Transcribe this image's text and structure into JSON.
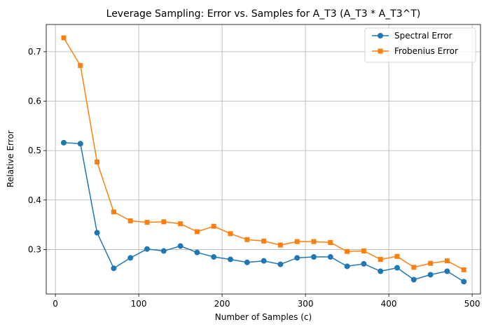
{
  "chart_data": {
    "type": "line",
    "title": "Leverage Sampling: Error vs. Samples for A_T3 (A_T3 * A_T3^T)",
    "xlabel": "Number of Samples (c)",
    "ylabel": "Relative Error",
    "xlim": [
      -11,
      510
    ],
    "ylim": [
      0.21,
      0.755
    ],
    "xticks": [
      0,
      100,
      200,
      300,
      400,
      500
    ],
    "yticks": [
      0.3,
      0.4,
      0.5,
      0.6,
      0.7
    ],
    "ytick_labels": [
      "0.3",
      "0.4",
      "0.5",
      "0.6",
      "0.7"
    ],
    "grid": true,
    "legend_position": "top-right",
    "x": [
      10,
      30,
      50,
      70,
      90,
      110,
      130,
      150,
      170,
      190,
      210,
      230,
      250,
      270,
      290,
      310,
      330,
      350,
      370,
      390,
      410,
      430,
      450,
      470,
      490
    ],
    "series": [
      {
        "name": "Spectral Error",
        "color": "#1f77b4",
        "marker": "circle",
        "values": [
          0.516,
          0.514,
          0.334,
          0.262,
          0.283,
          0.301,
          0.297,
          0.307,
          0.294,
          0.285,
          0.28,
          0.274,
          0.277,
          0.27,
          0.283,
          0.285,
          0.285,
          0.266,
          0.271,
          0.256,
          0.263,
          0.239,
          0.249,
          0.256,
          0.235
        ]
      },
      {
        "name": "Frobenius Error",
        "color": "#ff7f0e",
        "marker": "square",
        "values": [
          0.728,
          0.672,
          0.477,
          0.376,
          0.358,
          0.355,
          0.356,
          0.352,
          0.336,
          0.347,
          0.332,
          0.32,
          0.317,
          0.309,
          0.316,
          0.316,
          0.314,
          0.296,
          0.297,
          0.28,
          0.286,
          0.264,
          0.272,
          0.277,
          0.259
        ]
      }
    ]
  }
}
